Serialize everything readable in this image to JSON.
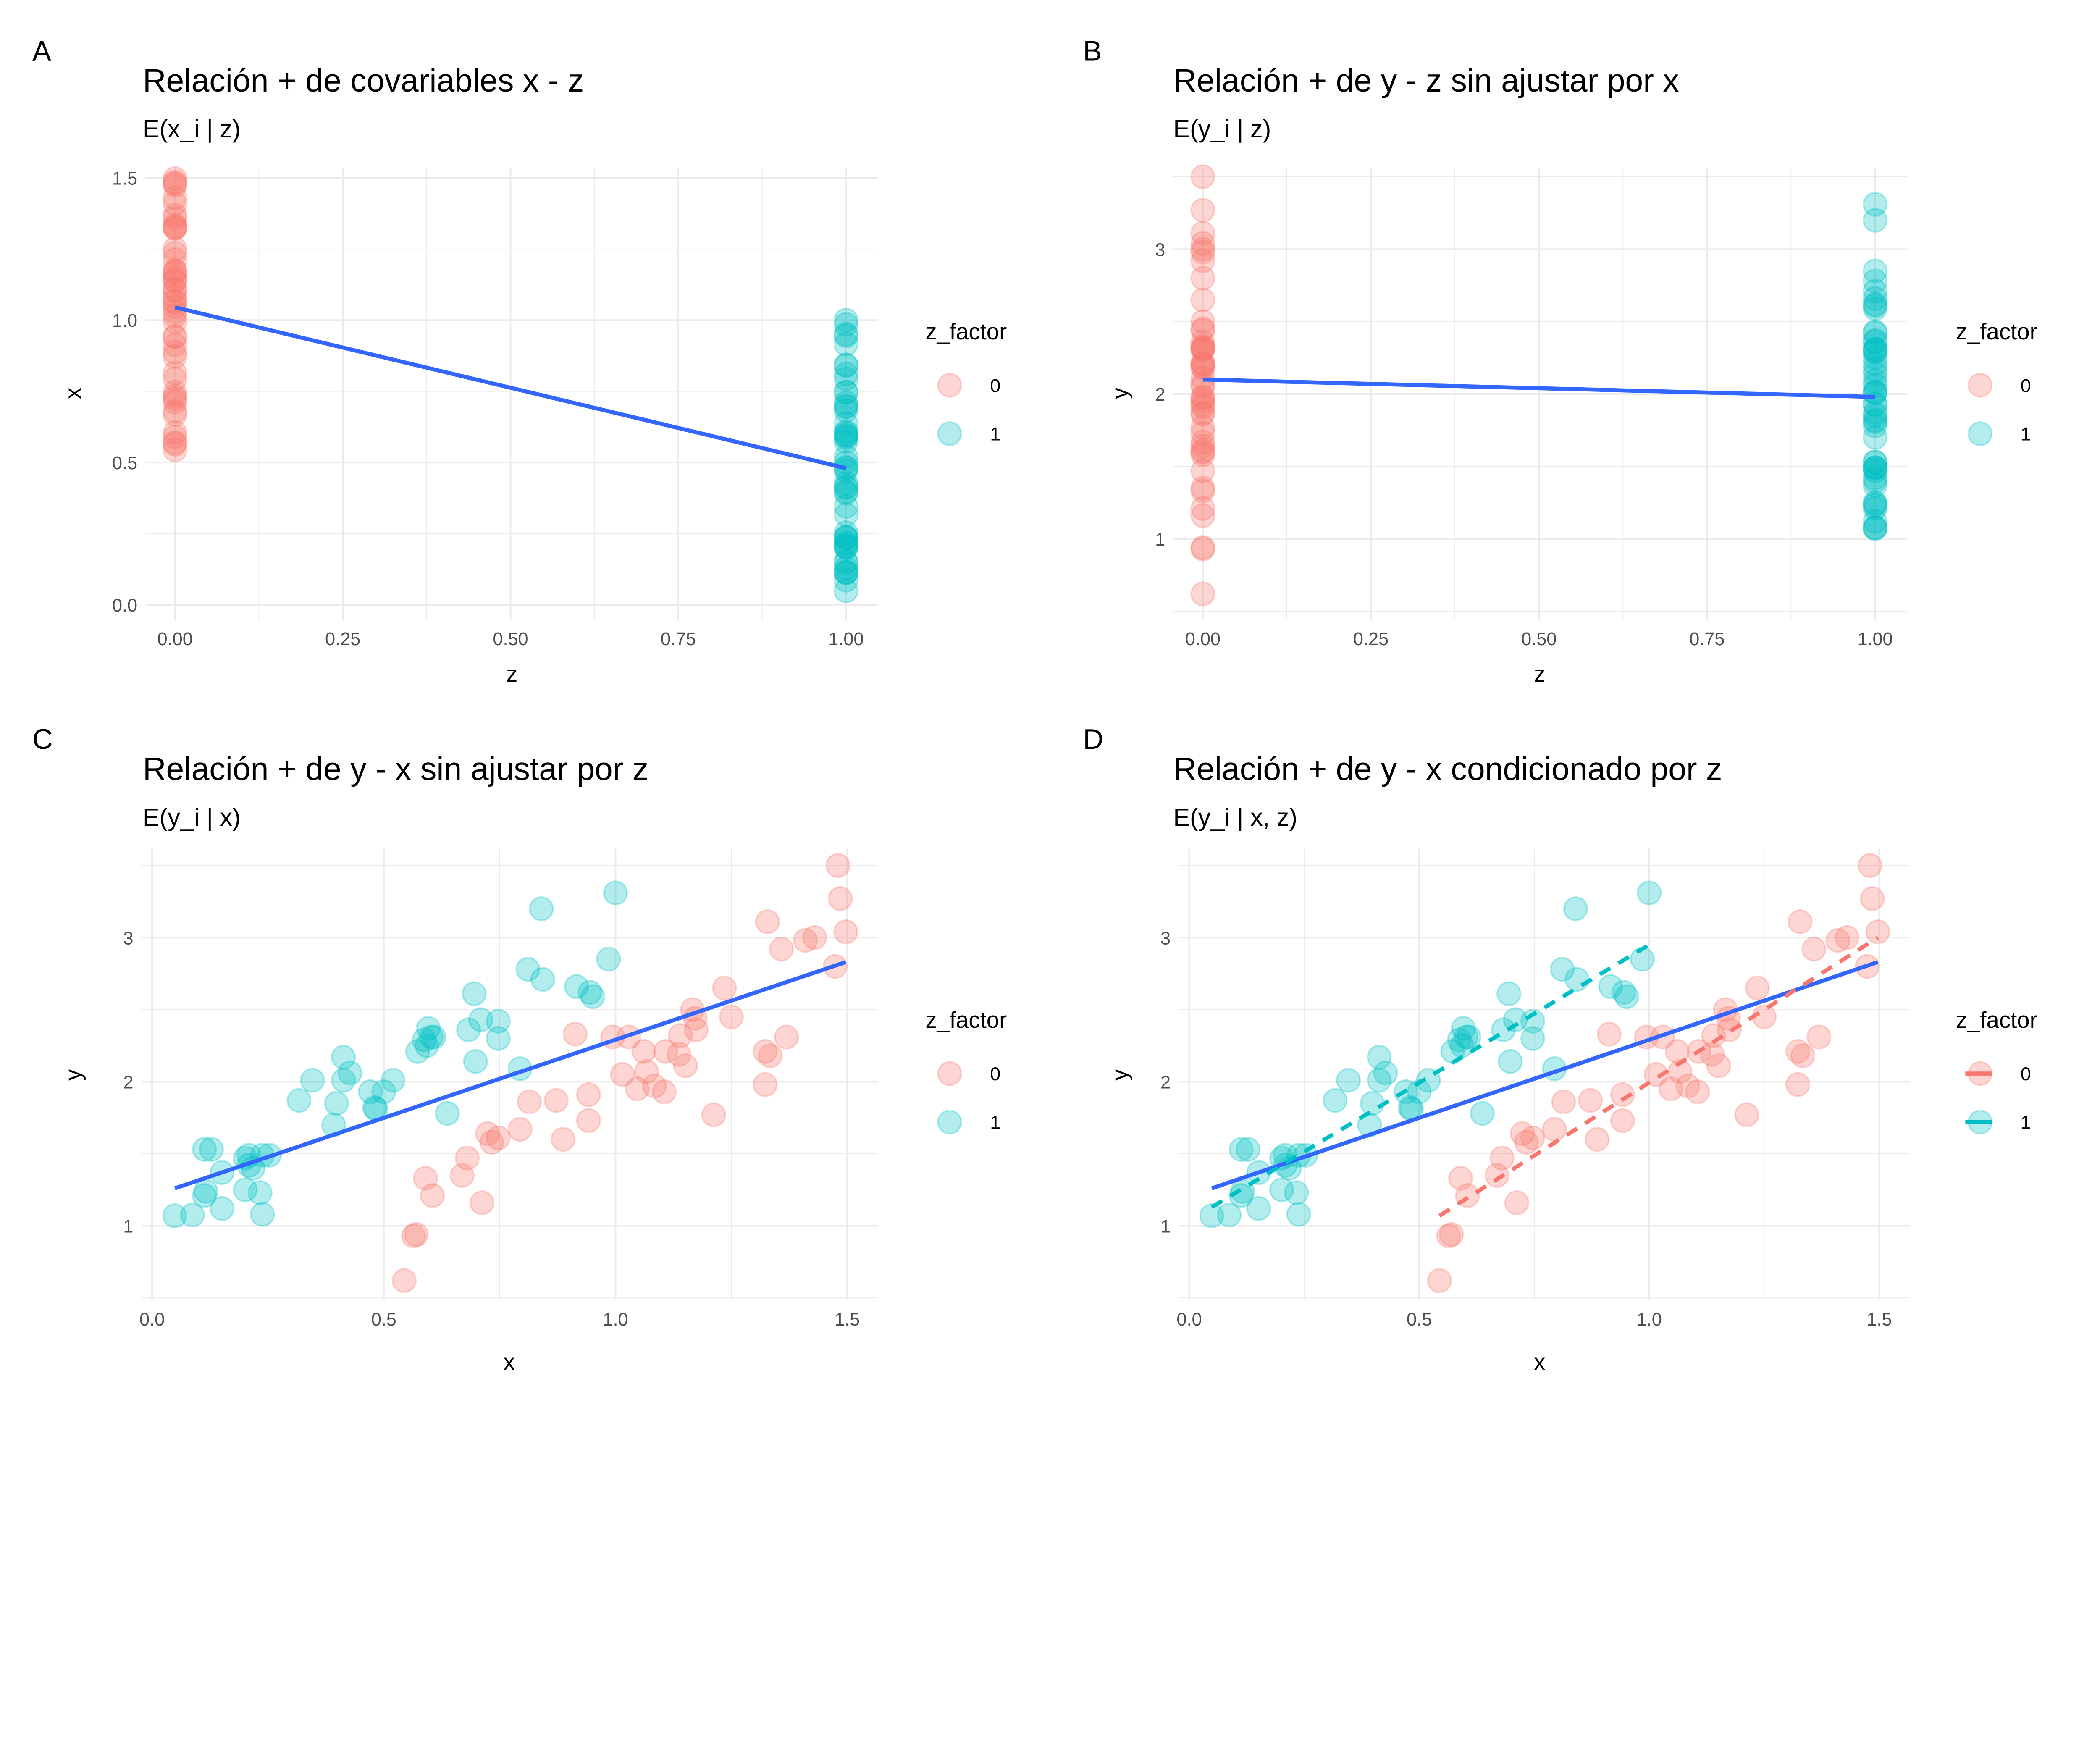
{
  "colors": {
    "z0": "#F8766D",
    "z1": "#00BFC4",
    "fit": "#3366FF",
    "grid": "#EBEBEB",
    "tick_text": "#4D4D4D"
  },
  "chart_data": [
    {
      "tag": "A",
      "type": "scatter",
      "title": "Relación + de covariables x - z",
      "subtitle": "E(x_i | z)",
      "xlabel": "z",
      "ylabel": "x",
      "xlim": [
        -0.044,
        1.048
      ],
      "ylim": [
        -0.052,
        1.533
      ],
      "xticks": [
        0,
        0.25,
        0.5,
        0.75,
        1
      ],
      "xtick_labels": [
        "0.00",
        "0.25",
        "0.50",
        "0.75",
        "1.00"
      ],
      "yticks": [
        0,
        0.5,
        1,
        1.5
      ],
      "ytick_labels": [
        "0.0",
        "0.5",
        "1.0",
        "1.5"
      ],
      "grid": true,
      "legend": {
        "title": "z_factor",
        "placement": "right",
        "entries": [
          "0",
          "1"
        ],
        "key": "point"
      },
      "series": [
        {
          "name": "0",
          "x_value": 0,
          "values": [
            0.544,
            0.564,
            0.57,
            0.59,
            0.605,
            0.669,
            0.68,
            0.712,
            0.724,
            0.733,
            0.747,
            0.794,
            0.814,
            0.872,
            0.887,
            0.913,
            0.942,
            0.942,
            0.994,
            1.015,
            1.029,
            1.047,
            1.061,
            1.067,
            1.084,
            1.105,
            1.108,
            1.137,
            1.14,
            1.151,
            1.166,
            1.172,
            1.174,
            1.212,
            1.235,
            1.25,
            1.323,
            1.323,
            1.328,
            1.334,
            1.358,
            1.369,
            1.41,
            1.43,
            1.48,
            1.485,
            1.497,
            1.474
          ]
        },
        {
          "name": "1",
          "x_value": 1,
          "values": [
            0.049,
            0.087,
            0.113,
            0.128,
            0.113,
            0.116,
            0.151,
            0.151,
            0.201,
            0.201,
            0.209,
            0.209,
            0.218,
            0.238,
            0.253,
            0.233,
            0.238,
            0.317,
            0.346,
            0.392,
            0.398,
            0.413,
            0.413,
            0.427,
            0.471,
            0.48,
            0.483,
            0.5,
            0.52,
            0.637,
            0.573,
            0.587,
            0.593,
            0.602,
            0.596,
            0.608,
            0.683,
            0.695,
            0.698,
            0.709,
            0.747,
            0.747,
            0.794,
            0.811,
            0.84,
            0.843,
            0.916,
            0.951,
            0.945,
            0.985,
            1.0
          ]
        }
      ],
      "fit_lines": [
        {
          "group": "all",
          "x": [
            0,
            1
          ],
          "y": [
            1.045,
            0.48
          ],
          "style": "solid"
        }
      ]
    },
    {
      "tag": "B",
      "type": "scatter",
      "title": "Relación + de y - z sin ajustar por x",
      "subtitle": "E(y_i | z)",
      "xlabel": "z",
      "ylabel": "y",
      "xlim": [
        -0.044,
        1.048
      ],
      "ylim": [
        0.442,
        3.558
      ],
      "xticks": [
        0,
        0.25,
        0.5,
        0.75,
        1
      ],
      "xtick_labels": [
        "0.00",
        "0.25",
        "0.50",
        "0.75",
        "1.00"
      ],
      "yticks": [
        1,
        2,
        3
      ],
      "ytick_labels": [
        "1",
        "2",
        "3"
      ],
      "grid": true,
      "legend": {
        "title": "z_factor",
        "placement": "right",
        "entries": [
          "0",
          "1"
        ],
        "key": "point"
      },
      "series": [
        {
          "name": "0",
          "x_value": 0,
          "values": [
            0.62,
            0.93,
            0.94,
            1.33,
            1.21,
            1.35,
            1.47,
            1.16,
            1.64,
            1.58,
            1.61,
            1.67,
            1.86,
            1.87,
            1.6,
            2.33,
            1.73,
            1.91,
            2.31,
            2.05,
            2.31,
            1.95,
            2.21,
            2.07,
            1.97,
            1.93,
            2.21,
            2.19,
            2.32,
            2.11,
            2.5,
            2.44,
            2.36,
            1.77,
            2.65,
            2.45,
            1.98,
            2.21,
            3.11,
            2.18,
            2.92,
            2.31,
            2.98,
            3.0,
            3.5,
            3.27,
            3.04,
            2.8
          ]
        },
        {
          "name": "1",
          "x_value": 1,
          "values": [
            1.07,
            1.075,
            1.53,
            1.53,
            1.21,
            1.24,
            1.37,
            1.12,
            1.25,
            1.47,
            1.49,
            1.42,
            1.4,
            1.49,
            1.49,
            1.23,
            1.08,
            1.87,
            2.01,
            1.7,
            1.85,
            2.17,
            2.01,
            2.06,
            1.93,
            1.82,
            1.81,
            1.93,
            2.01,
            1.78,
            2.21,
            2.29,
            2.25,
            2.31,
            2.37,
            2.31,
            2.36,
            2.61,
            2.14,
            2.43,
            2.42,
            2.3,
            2.09,
            2.78,
            3.2,
            2.71,
            2.66,
            2.59,
            2.62,
            2.85,
            3.31
          ]
        }
      ],
      "fit_lines": [
        {
          "group": "all",
          "x": [
            0,
            1
          ],
          "y": [
            2.1,
            1.98
          ],
          "style": "solid"
        }
      ]
    },
    {
      "tag": "C",
      "type": "scatter",
      "title": "Relación + de y - x sin ajustar por z",
      "subtitle": "E(y_i | x)",
      "xlabel": "x",
      "ylabel": "y",
      "xlim": [
        -0.023,
        1.567
      ],
      "ylim": [
        0.486,
        3.617
      ],
      "xticks": [
        0,
        0.5,
        1,
        1.5
      ],
      "xtick_labels": [
        "0.0",
        "0.5",
        "1.0",
        "1.5"
      ],
      "yticks": [
        1,
        2,
        3
      ],
      "ytick_labels": [
        "1",
        "2",
        "3"
      ],
      "grid": true,
      "legend": {
        "title": "z_factor",
        "placement": "right",
        "entries": [
          "0",
          "1"
        ],
        "key": "point"
      },
      "series": [
        {
          "name": "0",
          "x": [
            0.544,
            0.564,
            0.57,
            0.59,
            0.605,
            0.669,
            0.68,
            0.712,
            0.724,
            0.733,
            0.747,
            0.794,
            0.814,
            0.872,
            0.887,
            0.913,
            0.942,
            0.942,
            0.994,
            1.015,
            1.029,
            1.047,
            1.061,
            1.067,
            1.084,
            1.105,
            1.108,
            1.137,
            1.14,
            1.151,
            1.166,
            1.172,
            1.174,
            1.212,
            1.235,
            1.25,
            1.323,
            1.323,
            1.328,
            1.334,
            1.358,
            1.369,
            1.41,
            1.43,
            1.48,
            1.485,
            1.497,
            1.474
          ],
          "y": [
            0.62,
            0.93,
            0.94,
            1.33,
            1.21,
            1.35,
            1.47,
            1.16,
            1.64,
            1.58,
            1.61,
            1.67,
            1.86,
            1.87,
            1.6,
            2.33,
            1.73,
            1.91,
            2.31,
            2.05,
            2.31,
            1.95,
            2.21,
            2.07,
            1.97,
            1.93,
            2.21,
            2.19,
            2.32,
            2.11,
            2.5,
            2.44,
            2.36,
            1.77,
            2.65,
            2.45,
            1.98,
            2.21,
            3.11,
            2.18,
            2.92,
            2.31,
            2.98,
            3.0,
            3.5,
            3.27,
            3.04,
            2.8
          ]
        },
        {
          "name": "1",
          "x": [
            0.049,
            0.087,
            0.113,
            0.128,
            0.113,
            0.116,
            0.151,
            0.151,
            0.201,
            0.201,
            0.209,
            0.209,
            0.218,
            0.238,
            0.253,
            0.233,
            0.238,
            0.317,
            0.346,
            0.392,
            0.398,
            0.413,
            0.413,
            0.427,
            0.471,
            0.48,
            0.483,
            0.5,
            0.52,
            0.637,
            0.573,
            0.587,
            0.593,
            0.602,
            0.596,
            0.608,
            0.683,
            0.695,
            0.698,
            0.709,
            0.747,
            0.747,
            0.794,
            0.811,
            0.84,
            0.843,
            0.916,
            0.951,
            0.945,
            0.985,
            1.0
          ],
          "y": [
            1.07,
            1.075,
            1.53,
            1.53,
            1.21,
            1.24,
            1.37,
            1.12,
            1.25,
            1.47,
            1.49,
            1.42,
            1.4,
            1.49,
            1.49,
            1.23,
            1.08,
            1.87,
            2.01,
            1.7,
            1.85,
            2.17,
            2.01,
            2.06,
            1.93,
            1.82,
            1.81,
            1.93,
            2.01,
            1.78,
            2.21,
            2.29,
            2.25,
            2.31,
            2.37,
            2.31,
            2.36,
            2.61,
            2.14,
            2.43,
            2.42,
            2.3,
            2.09,
            2.78,
            3.2,
            2.71,
            2.66,
            2.59,
            2.62,
            2.85,
            3.31
          ]
        }
      ],
      "fit_lines": [
        {
          "group": "all",
          "x": [
            0.049,
            1.497
          ],
          "y": [
            1.26,
            2.83
          ],
          "style": "solid"
        }
      ]
    },
    {
      "tag": "D",
      "type": "scatter",
      "title": "Relación + de y - x condicionado por z",
      "subtitle": "E(y_i | x, z)",
      "xlabel": "x",
      "ylabel": "y",
      "xlim": [
        -0.023,
        1.567
      ],
      "ylim": [
        0.486,
        3.617
      ],
      "xticks": [
        0,
        0.5,
        1,
        1.5
      ],
      "xtick_labels": [
        "0.0",
        "0.5",
        "1.0",
        "1.5"
      ],
      "yticks": [
        1,
        2,
        3
      ],
      "ytick_labels": [
        "1",
        "2",
        "3"
      ],
      "grid": true,
      "legend": {
        "title": "z_factor",
        "placement": "right",
        "entries": [
          "0",
          "1"
        ],
        "key": "point+line"
      },
      "series": [
        {
          "name": "0",
          "x": [
            0.544,
            0.564,
            0.57,
            0.59,
            0.605,
            0.669,
            0.68,
            0.712,
            0.724,
            0.733,
            0.747,
            0.794,
            0.814,
            0.872,
            0.887,
            0.913,
            0.942,
            0.942,
            0.994,
            1.015,
            1.029,
            1.047,
            1.061,
            1.067,
            1.084,
            1.105,
            1.108,
            1.137,
            1.14,
            1.151,
            1.166,
            1.172,
            1.174,
            1.212,
            1.235,
            1.25,
            1.323,
            1.323,
            1.328,
            1.334,
            1.358,
            1.369,
            1.41,
            1.43,
            1.48,
            1.485,
            1.497,
            1.474
          ],
          "y": [
            0.62,
            0.93,
            0.94,
            1.33,
            1.21,
            1.35,
            1.47,
            1.16,
            1.64,
            1.58,
            1.61,
            1.67,
            1.86,
            1.87,
            1.6,
            2.33,
            1.73,
            1.91,
            2.31,
            2.05,
            2.31,
            1.95,
            2.21,
            2.07,
            1.97,
            1.93,
            2.21,
            2.19,
            2.32,
            2.11,
            2.5,
            2.44,
            2.36,
            1.77,
            2.65,
            2.45,
            1.98,
            2.21,
            3.11,
            2.18,
            2.92,
            2.31,
            2.98,
            3.0,
            3.5,
            3.27,
            3.04,
            2.8
          ]
        },
        {
          "name": "1",
          "x": [
            0.049,
            0.087,
            0.113,
            0.128,
            0.113,
            0.116,
            0.151,
            0.151,
            0.201,
            0.201,
            0.209,
            0.209,
            0.218,
            0.238,
            0.253,
            0.233,
            0.238,
            0.317,
            0.346,
            0.392,
            0.398,
            0.413,
            0.413,
            0.427,
            0.471,
            0.48,
            0.483,
            0.5,
            0.52,
            0.637,
            0.573,
            0.587,
            0.593,
            0.602,
            0.596,
            0.608,
            0.683,
            0.695,
            0.698,
            0.709,
            0.747,
            0.747,
            0.794,
            0.811,
            0.84,
            0.843,
            0.916,
            0.951,
            0.945,
            0.985,
            1.0
          ],
          "y": [
            1.07,
            1.075,
            1.53,
            1.53,
            1.21,
            1.24,
            1.37,
            1.12,
            1.25,
            1.47,
            1.49,
            1.42,
            1.4,
            1.49,
            1.49,
            1.23,
            1.08,
            1.87,
            2.01,
            1.7,
            1.85,
            2.17,
            2.01,
            2.06,
            1.93,
            1.82,
            1.81,
            1.93,
            2.01,
            1.78,
            2.21,
            2.29,
            2.25,
            2.31,
            2.37,
            2.31,
            2.36,
            2.61,
            2.14,
            2.43,
            2.42,
            2.3,
            2.09,
            2.78,
            3.2,
            2.71,
            2.66,
            2.59,
            2.62,
            2.85,
            3.31
          ]
        }
      ],
      "fit_lines": [
        {
          "group": "all",
          "x": [
            0.049,
            1.497
          ],
          "y": [
            1.26,
            2.83
          ],
          "style": "solid"
        },
        {
          "group": "0",
          "x": [
            0.544,
            1.497
          ],
          "y": [
            1.07,
            3.0
          ],
          "style": "dashed"
        },
        {
          "group": "1",
          "x": [
            0.049,
            1.0
          ],
          "y": [
            1.13,
            2.95
          ],
          "style": "dashed"
        }
      ]
    }
  ]
}
